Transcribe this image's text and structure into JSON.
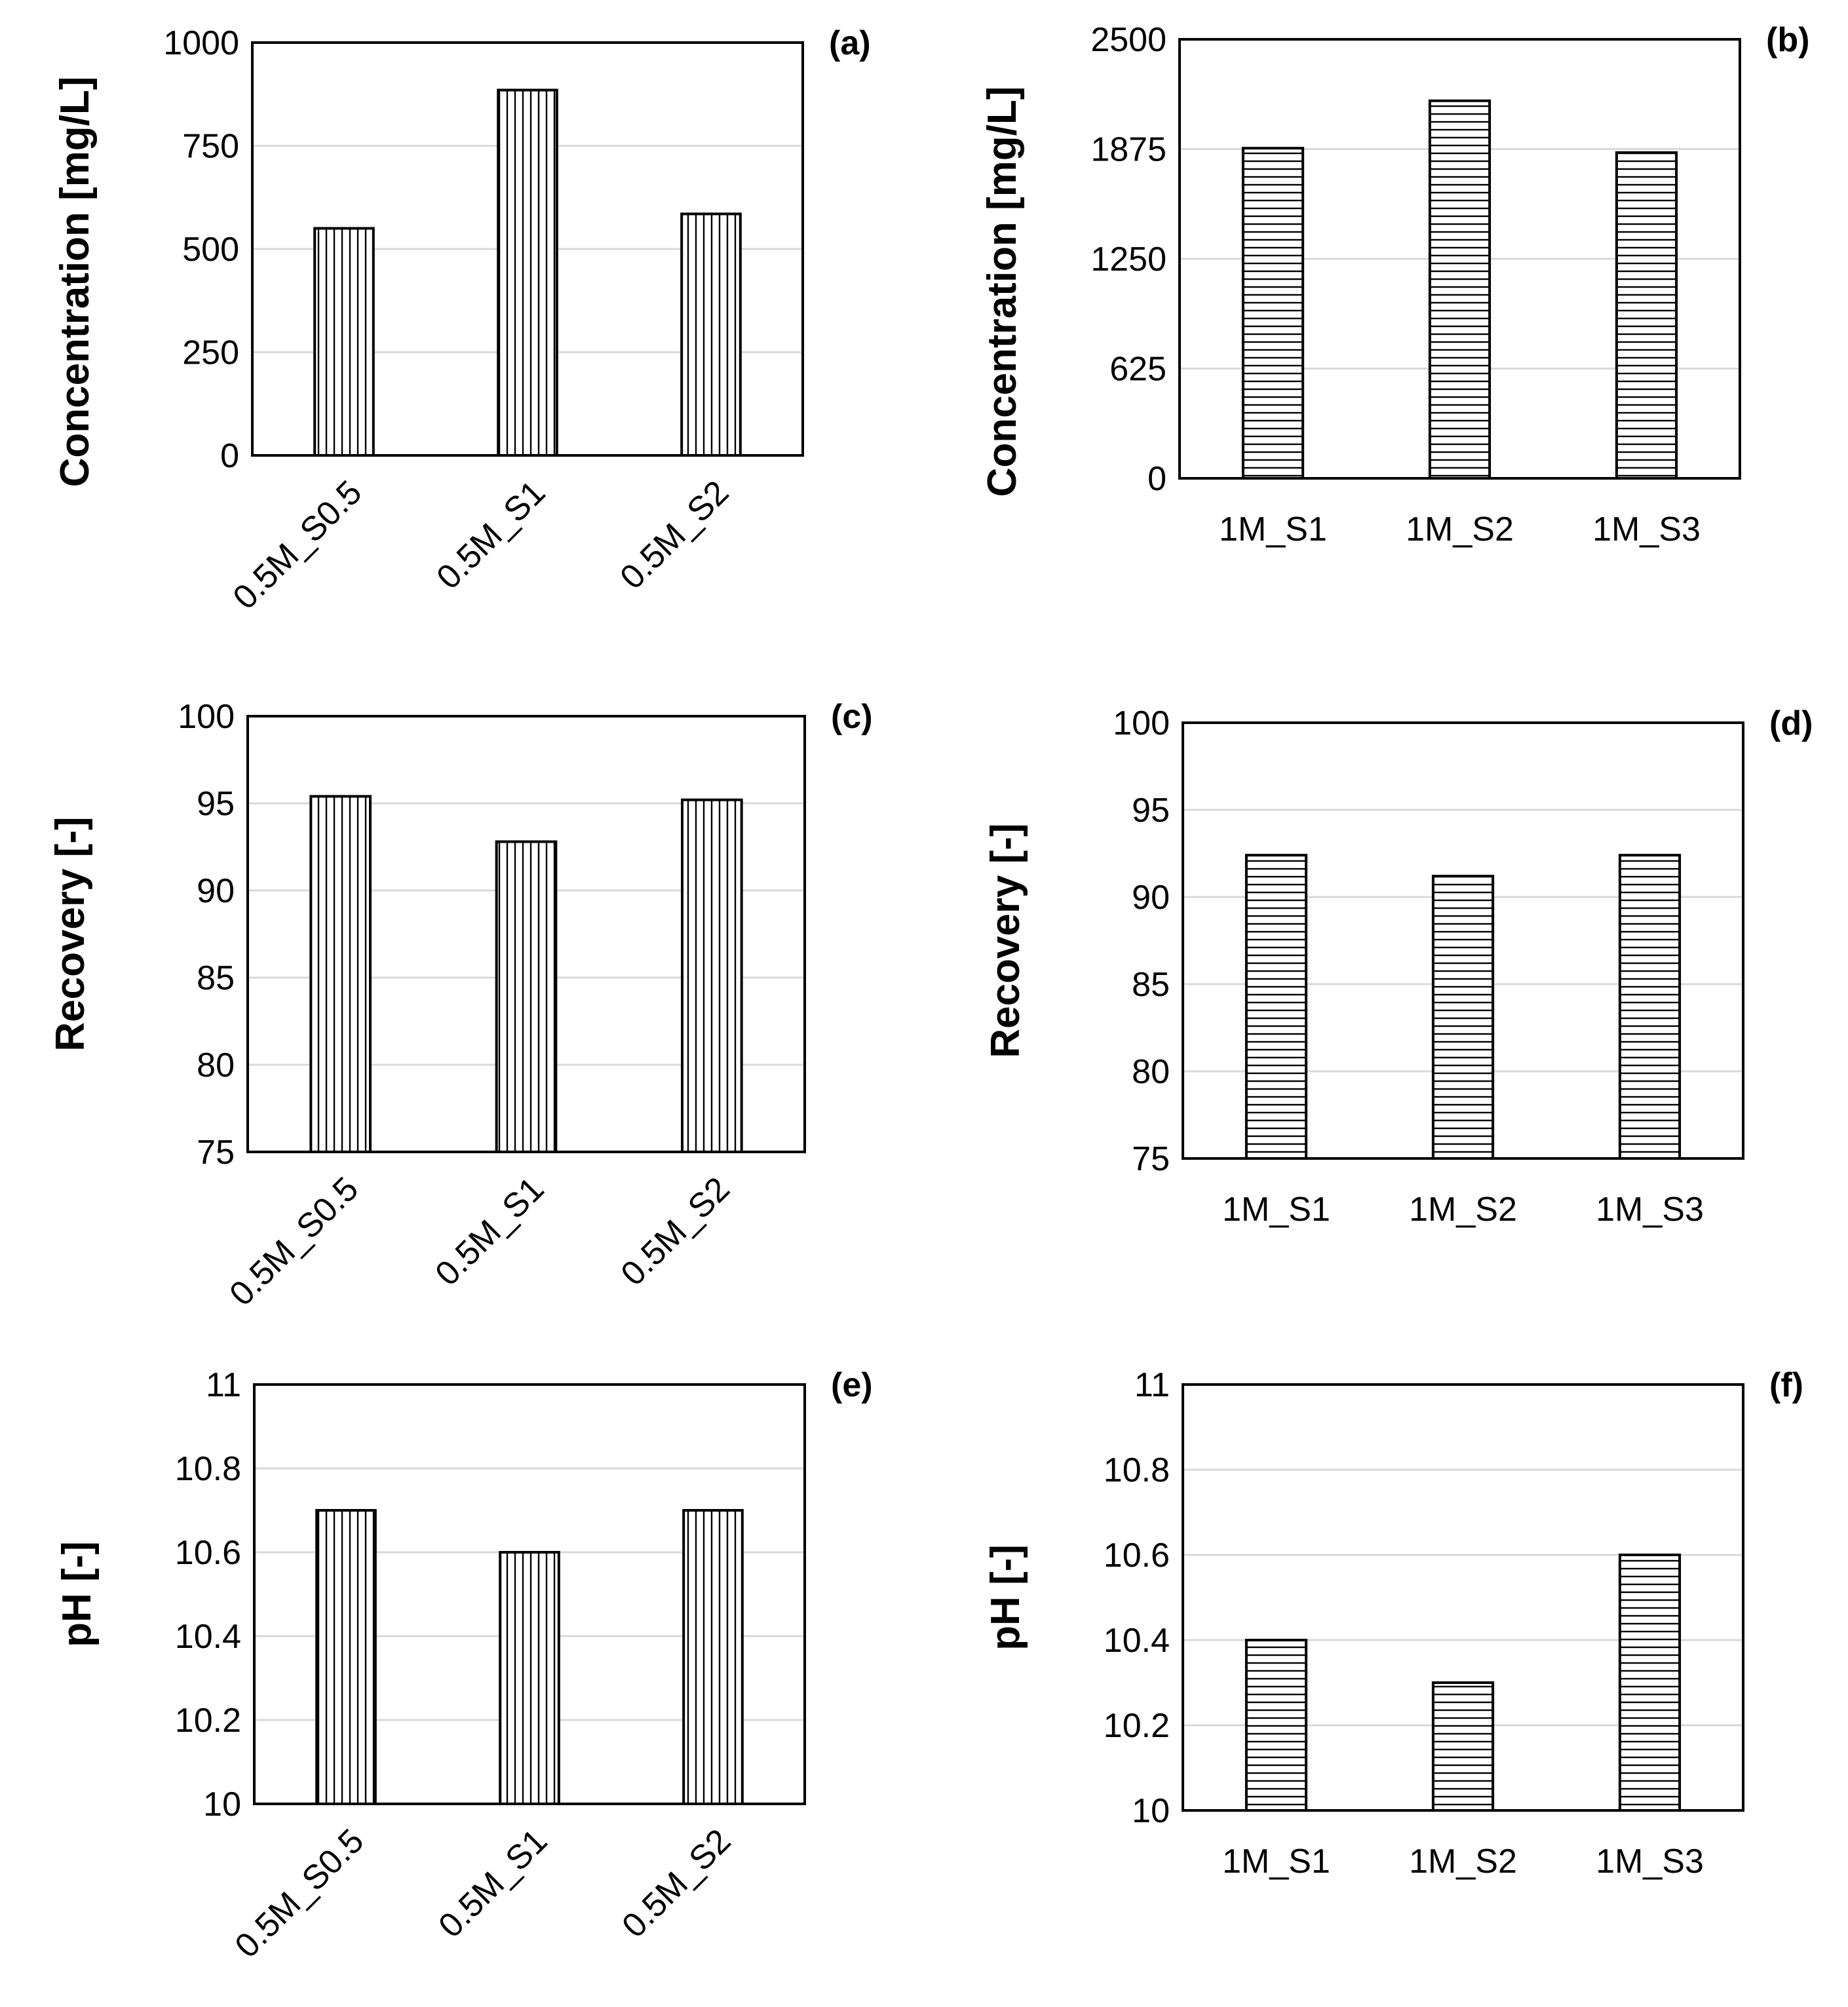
{
  "colors": {
    "background": "#ffffff",
    "axis": "#000000",
    "grid": "#d9d9d9",
    "bar_fill": "#ffffff",
    "hatch": "#000000"
  },
  "chart_data": [
    {
      "type": "bar",
      "panel_label": "(a)",
      "ylabel": "Concentration [mg/L]",
      "xlabel": "",
      "categories": [
        "0.5M_S0.5",
        "0.5M_S1",
        "0.5M_S2"
      ],
      "values": [
        550,
        885,
        585
      ],
      "ylim": [
        0,
        1000
      ],
      "yticks": [
        "0",
        "250",
        "500",
        "750",
        "1000"
      ],
      "hatch": "vertical",
      "xtick_rotation": "rotated",
      "grid": true,
      "legend": "none"
    },
    {
      "type": "bar",
      "panel_label": "(b)",
      "ylabel": "Concentration [mg/L]",
      "xlabel": "",
      "categories": [
        "1M_S1",
        "1M_S2",
        "1M_S3"
      ],
      "values": [
        1880,
        2150,
        1855
      ],
      "ylim": [
        0,
        2500
      ],
      "yticks": [
        "0",
        "625",
        "1250",
        "1875",
        "2500"
      ],
      "hatch": "horizontal",
      "xtick_rotation": "horizontal",
      "grid": true,
      "legend": "none"
    },
    {
      "type": "bar",
      "panel_label": "(c)",
      "ylabel": "Recovery [-]",
      "xlabel": "",
      "categories": [
        "0.5M_S0.5",
        "0.5M_S1",
        "0.5M_S2"
      ],
      "values": [
        95.4,
        92.8,
        95.2
      ],
      "ylim": [
        75,
        100
      ],
      "yticks": [
        "75",
        "80",
        "85",
        "90",
        "95",
        "100"
      ],
      "hatch": "vertical",
      "xtick_rotation": "rotated",
      "grid": true,
      "legend": "none"
    },
    {
      "type": "bar",
      "panel_label": "(d)",
      "ylabel": "Recovery [-]",
      "xlabel": "",
      "categories": [
        "1M_S1",
        "1M_S2",
        "1M_S3"
      ],
      "values": [
        92.4,
        91.2,
        92.4
      ],
      "ylim": [
        75,
        100
      ],
      "yticks": [
        "75",
        "80",
        "85",
        "90",
        "95",
        "100"
      ],
      "hatch": "horizontal",
      "xtick_rotation": "horizontal",
      "grid": true,
      "legend": "none"
    },
    {
      "type": "bar",
      "panel_label": "(e)",
      "ylabel": "pH [-]",
      "xlabel": "",
      "categories": [
        "0.5M_S0.5",
        "0.5M_S1",
        "0.5M_S2"
      ],
      "values": [
        10.7,
        10.6,
        10.7
      ],
      "ylim": [
        10,
        11
      ],
      "yticks": [
        "10",
        "10.2",
        "10.4",
        "10.6",
        "10.8",
        "11"
      ],
      "hatch": "vertical",
      "xtick_rotation": "rotated",
      "grid": true,
      "legend": "none"
    },
    {
      "type": "bar",
      "panel_label": "(f)",
      "ylabel": "pH [-]",
      "xlabel": "",
      "categories": [
        "1M_S1",
        "1M_S2",
        "1M_S3"
      ],
      "values": [
        10.4,
        10.3,
        10.6
      ],
      "ylim": [
        10,
        11
      ],
      "yticks": [
        "10",
        "10.2",
        "10.4",
        "10.6",
        "10.8",
        "11"
      ],
      "hatch": "horizontal",
      "xtick_rotation": "horizontal",
      "grid": true,
      "legend": "none"
    }
  ]
}
